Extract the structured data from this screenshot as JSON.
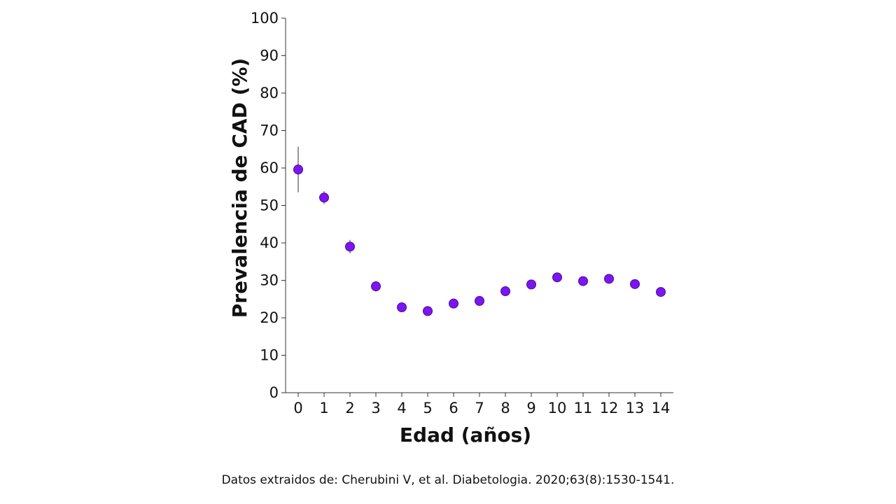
{
  "colors": {
    "point_fill": "#7b16f0",
    "point_stroke": "#4a0aa0",
    "axis": "#333333",
    "error_bar": "#555555"
  },
  "source_note": "Datos extraidos de: Cherubini V, et al. Diabetologia. 2020;63(8):1530-1541.",
  "chart_data": {
    "type": "scatter",
    "title": "",
    "xlabel": "Edad (años)",
    "ylabel": "Prevalencia de CAD (%)",
    "xlim": [
      0,
      14
    ],
    "ylim": [
      0,
      100
    ],
    "x_ticks": [
      0,
      1,
      2,
      3,
      4,
      5,
      6,
      7,
      8,
      9,
      10,
      11,
      12,
      13,
      14
    ],
    "y_ticks": [
      0,
      10,
      20,
      30,
      40,
      50,
      60,
      70,
      80,
      90,
      100
    ],
    "grid": false,
    "series": [
      {
        "x": [
          0,
          1,
          2,
          3,
          4,
          5,
          6,
          7,
          8,
          9,
          10,
          11,
          12,
          13,
          14
        ],
        "y": [
          59.6,
          52.1,
          39.0,
          28.4,
          22.8,
          21.8,
          23.8,
          24.5,
          27.1,
          28.9,
          30.8,
          29.8,
          30.4,
          29.0,
          26.9
        ],
        "error_low": [
          53.5,
          50.4,
          37.2,
          27.0,
          22.0,
          21.0,
          23.0,
          23.7,
          26.3,
          28.1,
          30.0,
          29.0,
          29.6,
          28.2,
          26.1
        ],
        "error_high": [
          65.7,
          53.8,
          40.8,
          29.8,
          23.6,
          22.6,
          24.6,
          25.3,
          27.9,
          29.7,
          31.6,
          30.6,
          31.2,
          29.8,
          27.7
        ]
      }
    ]
  }
}
